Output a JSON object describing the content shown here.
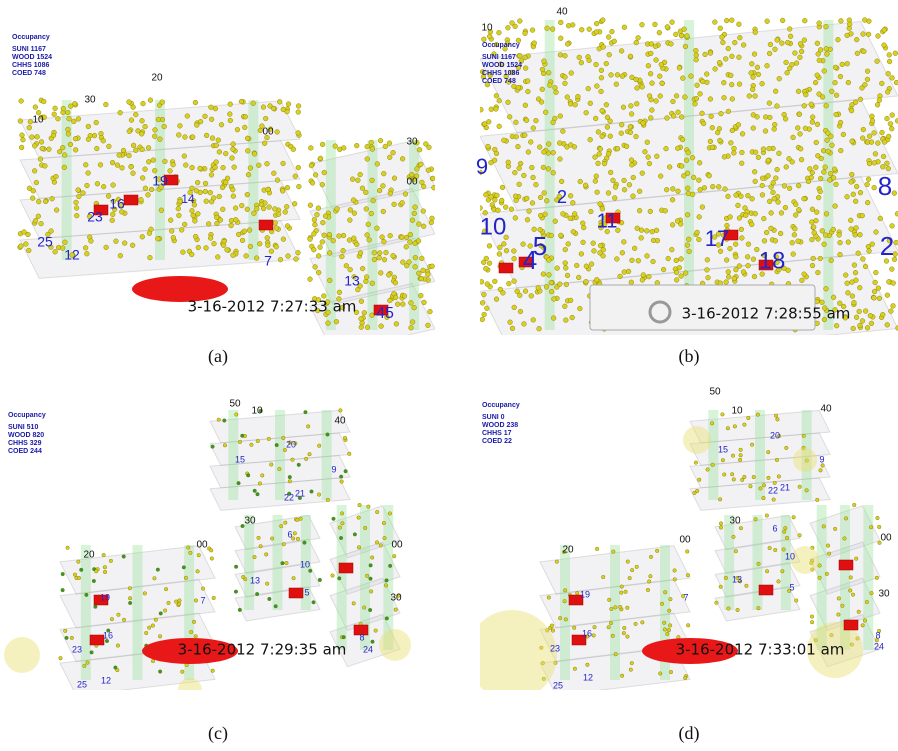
{
  "panels": [
    {
      "caption": "(a)",
      "occupancy_title": "Occupancy",
      "occupancy": [
        "SUNI 1167",
        "WOOD 1524",
        "CHHS 1086",
        "COED 748"
      ],
      "timestamp": "3-16-2012 7:27:33 am",
      "floor_labels": [
        "10",
        "30",
        "20",
        "00",
        "30",
        "00"
      ],
      "room_labels": [
        "25",
        "12",
        "23",
        "16",
        "19",
        "14",
        "7",
        "13",
        "45"
      ]
    },
    {
      "caption": "(b)",
      "occupancy_title": "Occupancy",
      "occupancy": [
        "SUNI 1167",
        "WOOD 1524",
        "CHHS 1086",
        "COED 748"
      ],
      "timestamp": "3-16-2012 7:28:55 am",
      "floor_labels": [
        "10",
        "40"
      ],
      "room_labels": [
        "9",
        "2",
        "10",
        "5",
        "4",
        "11",
        "17",
        "18",
        "8",
        "2"
      ]
    },
    {
      "caption": "(c)",
      "occupancy_title": "Occupancy",
      "occupancy": [
        "SUNI 510",
        "WOOD 820",
        "CHHS 329",
        "COED 244"
      ],
      "timestamp": "3-16-2012 7:29:35 am",
      "floor_labels": [
        "50",
        "10",
        "40",
        "30",
        "00",
        "20",
        "00",
        "30"
      ],
      "room_labels": [
        "20",
        "15",
        "9",
        "22",
        "21",
        "6",
        "10",
        "13",
        "5",
        "7",
        "19",
        "16",
        "23",
        "12",
        "25",
        "8",
        "24"
      ]
    },
    {
      "caption": "(d)",
      "occupancy_title": "Occupancy",
      "occupancy": [
        "SUNI 0",
        "WOOD 238",
        "CHHS 17",
        "COED 22"
      ],
      "timestamp": "3-16-2012 7:33:01 am",
      "floor_labels": [
        "50",
        "10",
        "40",
        "30",
        "00",
        "20",
        "00",
        "30"
      ],
      "room_labels": [
        "20",
        "15",
        "9",
        "22",
        "21",
        "6",
        "10",
        "13",
        "5",
        "7",
        "19",
        "16",
        "23",
        "12",
        "25",
        "8",
        "24"
      ]
    }
  ]
}
